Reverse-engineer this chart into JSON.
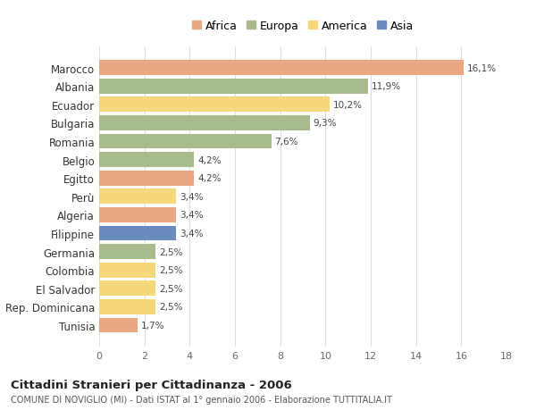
{
  "countries": [
    "Tunisia",
    "Rep. Dominicana",
    "El Salvador",
    "Colombia",
    "Germania",
    "Filippine",
    "Algeria",
    "Perù",
    "Egitto",
    "Belgio",
    "Romania",
    "Bulgaria",
    "Ecuador",
    "Albania",
    "Marocco"
  ],
  "values": [
    1.7,
    2.5,
    2.5,
    2.5,
    2.5,
    3.4,
    3.4,
    3.4,
    4.2,
    4.2,
    7.6,
    9.3,
    10.2,
    11.9,
    16.1
  ],
  "labels": [
    "1,7%",
    "2,5%",
    "2,5%",
    "2,5%",
    "2,5%",
    "3,4%",
    "3,4%",
    "3,4%",
    "4,2%",
    "4,2%",
    "7,6%",
    "9,3%",
    "10,2%",
    "11,9%",
    "16,1%"
  ],
  "continents": [
    "Africa",
    "America",
    "America",
    "America",
    "Europa",
    "Asia",
    "Africa",
    "America",
    "Africa",
    "Europa",
    "Europa",
    "Europa",
    "America",
    "Europa",
    "Africa"
  ],
  "colors": {
    "Africa": "#E8A882",
    "Europa": "#A8BB8C",
    "America": "#F5D87A",
    "Asia": "#6B8BBF"
  },
  "legend_order": [
    "Africa",
    "Europa",
    "America",
    "Asia"
  ],
  "title1": "Cittadini Stranieri per Cittadinanza - 2006",
  "title2": "COMUNE DI NOVIGLIO (MI) - Dati ISTAT al 1° gennaio 2006 - Elaborazione TUTTITALIA.IT",
  "xlim": [
    0,
    18
  ],
  "xticks": [
    0,
    2,
    4,
    6,
    8,
    10,
    12,
    14,
    16,
    18
  ],
  "bar_height": 0.82,
  "background_color": "#ffffff",
  "grid_color": "#dddddd"
}
